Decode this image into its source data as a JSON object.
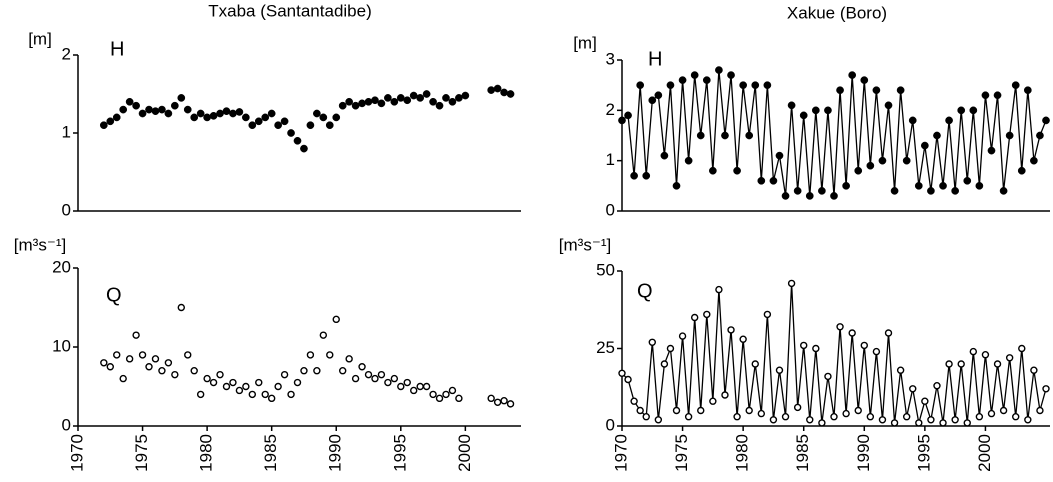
{
  "chart_data": [
    {
      "type": "scatter",
      "title": "Txaba (Santantadibe)",
      "y_unit": "[m]",
      "panel_label": "H",
      "marker": "filled",
      "x": [
        1972,
        1972.5,
        1973,
        1973.5,
        1974,
        1974.5,
        1975,
        1975.5,
        1976,
        1976.5,
        1977,
        1977.5,
        1978,
        1978.5,
        1979,
        1979.5,
        1980,
        1980.5,
        1981,
        1981.5,
        1982,
        1982.5,
        1983,
        1983.5,
        1984,
        1984.5,
        1985,
        1985.5,
        1986,
        1986.5,
        1987,
        1987.5,
        1988,
        1988.5,
        1989,
        1989.5,
        1990,
        1990.5,
        1991,
        1991.5,
        1992,
        1992.5,
        1993,
        1993.5,
        1994,
        1994.5,
        1995,
        1995.5,
        1996,
        1996.5,
        1997,
        1997.5,
        1998,
        1998.5,
        1999,
        1999.5,
        2000,
        2002,
        2002.5,
        2003,
        2003.5
      ],
      "values": [
        1.1,
        1.15,
        1.2,
        1.3,
        1.4,
        1.35,
        1.25,
        1.3,
        1.28,
        1.3,
        1.25,
        1.35,
        1.45,
        1.3,
        1.2,
        1.25,
        1.2,
        1.22,
        1.25,
        1.28,
        1.25,
        1.27,
        1.2,
        1.1,
        1.15,
        1.2,
        1.25,
        1.1,
        1.15,
        1.0,
        0.9,
        0.8,
        1.1,
        1.25,
        1.2,
        1.1,
        1.2,
        1.35,
        1.4,
        1.35,
        1.38,
        1.4,
        1.42,
        1.38,
        1.45,
        1.4,
        1.45,
        1.42,
        1.48,
        1.45,
        1.5,
        1.4,
        1.35,
        1.45,
        1.4,
        1.45,
        1.48,
        1.55,
        1.57,
        1.52,
        1.5
      ],
      "xlim": [
        1970,
        2004
      ],
      "ylim": [
        0,
        2
      ],
      "yticks": [
        0,
        1,
        2
      ]
    },
    {
      "type": "scatter",
      "y_unit": "[m³s⁻¹]",
      "panel_label": "Q",
      "marker": "open",
      "x": [
        1972,
        1972.5,
        1973,
        1973.5,
        1974,
        1974.5,
        1975,
        1975.5,
        1976,
        1976.5,
        1977,
        1977.5,
        1978,
        1978.5,
        1979,
        1979.5,
        1980,
        1980.5,
        1981,
        1981.5,
        1982,
        1982.5,
        1983,
        1983.5,
        1984,
        1984.5,
        1985,
        1985.5,
        1986,
        1986.5,
        1987,
        1987.5,
        1988,
        1988.5,
        1989,
        1989.5,
        1990,
        1990.5,
        1991,
        1991.5,
        1992,
        1992.5,
        1993,
        1993.5,
        1994,
        1994.5,
        1995,
        1995.5,
        1996,
        1996.5,
        1997,
        1997.5,
        1998,
        1998.5,
        1999,
        1999.5,
        2002,
        2002.5,
        2003,
        2003.5
      ],
      "values": [
        8,
        7.5,
        9,
        6,
        8.5,
        11.5,
        9,
        7.5,
        8.5,
        7,
        8,
        6.5,
        15,
        9,
        7,
        4,
        6,
        5.5,
        6.5,
        5,
        5.5,
        4.5,
        5,
        4,
        5.5,
        4,
        3.5,
        5,
        6.5,
        4,
        5.5,
        7,
        9,
        7,
        11.5,
        9,
        13.5,
        7,
        8.5,
        6,
        7.5,
        6.5,
        6,
        6.5,
        5.5,
        6,
        5,
        5.5,
        4.5,
        5,
        5,
        4,
        3.5,
        4,
        4.5,
        3.5,
        3.5,
        3,
        3.2,
        2.8
      ],
      "xlim": [
        1970,
        2004
      ],
      "ylim": [
        0,
        20
      ],
      "yticks": [
        0,
        10,
        20
      ],
      "xticks": [
        1970,
        1975,
        1980,
        1985,
        1990,
        1995,
        2000
      ]
    },
    {
      "type": "line",
      "title": "Xakue (Boro)",
      "y_unit": "[m]",
      "panel_label": "H",
      "marker": "filled",
      "x": [
        1970,
        1970.5,
        1971,
        1971.5,
        1972,
        1972.5,
        1973,
        1973.5,
        1974,
        1974.5,
        1975,
        1975.5,
        1976,
        1976.5,
        1977,
        1977.5,
        1978,
        1978.5,
        1979,
        1979.5,
        1980,
        1980.5,
        1981,
        1981.5,
        1982,
        1982.5,
        1983,
        1983.5,
        1984,
        1984.5,
        1985,
        1985.5,
        1986,
        1986.5,
        1987,
        1987.5,
        1988,
        1988.5,
        1989,
        1989.5,
        1990,
        1990.5,
        1991,
        1991.5,
        1992,
        1992.5,
        1993,
        1993.5,
        1994,
        1994.5,
        1995,
        1995.5,
        1996,
        1996.5,
        1997,
        1997.5,
        1998,
        1998.5,
        1999,
        1999.5,
        2000,
        2000.5,
        2001,
        2001.5,
        2002,
        2002.5,
        2003,
        2003.5,
        2004,
        2004.5,
        2005
      ],
      "values": [
        1.8,
        1.9,
        0.7,
        2.5,
        0.7,
        2.2,
        2.3,
        1.1,
        2.5,
        0.5,
        2.6,
        1.0,
        2.7,
        1.5,
        2.6,
        0.8,
        2.8,
        1.5,
        2.7,
        0.8,
        2.5,
        1.5,
        2.5,
        0.6,
        2.5,
        0.6,
        1.1,
        0.3,
        2.1,
        0.4,
        1.9,
        0.3,
        2.0,
        0.4,
        2.0,
        0.3,
        2.4,
        0.5,
        2.7,
        0.8,
        2.6,
        0.9,
        2.4,
        1.0,
        2.1,
        0.4,
        2.4,
        1.0,
        1.8,
        0.5,
        1.3,
        0.4,
        1.5,
        0.5,
        1.8,
        0.4,
        2.0,
        0.6,
        2.0,
        0.5,
        2.3,
        1.2,
        2.3,
        0.4,
        1.5,
        2.5,
        0.8,
        2.4,
        1.0,
        1.5,
        1.8
      ],
      "xlim": [
        1970,
        2005
      ],
      "ylim": [
        0,
        3
      ],
      "yticks": [
        0,
        1,
        2,
        3
      ]
    },
    {
      "type": "line",
      "y_unit": "[m³s⁻¹]",
      "panel_label": "Q",
      "marker": "open",
      "x": [
        1970,
        1970.5,
        1971,
        1971.5,
        1972,
        1972.5,
        1973,
        1973.5,
        1974,
        1974.5,
        1975,
        1975.5,
        1976,
        1976.5,
        1977,
        1977.5,
        1978,
        1978.5,
        1979,
        1979.5,
        1980,
        1980.5,
        1981,
        1981.5,
        1982,
        1982.5,
        1983,
        1983.5,
        1984,
        1984.5,
        1985,
        1985.5,
        1986,
        1986.5,
        1987,
        1987.5,
        1988,
        1988.5,
        1989,
        1989.5,
        1990,
        1990.5,
        1991,
        1991.5,
        1992,
        1992.5,
        1993,
        1993.5,
        1994,
        1994.5,
        1995,
        1995.5,
        1996,
        1996.5,
        1997,
        1997.5,
        1998,
        1998.5,
        1999,
        1999.5,
        2000,
        2000.5,
        2001,
        2001.5,
        2002,
        2002.5,
        2003,
        2003.5,
        2004,
        2004.5,
        2005
      ],
      "values": [
        17,
        15,
        8,
        5,
        3,
        27,
        2,
        20,
        25,
        5,
        29,
        3,
        35,
        5,
        36,
        8,
        44,
        10,
        31,
        3,
        28,
        5,
        20,
        4,
        36,
        2,
        18,
        3,
        46,
        6,
        26,
        2,
        25,
        1,
        16,
        3,
        32,
        4,
        30,
        5,
        26,
        3,
        24,
        2,
        30,
        1,
        18,
        3,
        12,
        1,
        8,
        2,
        13,
        1,
        20,
        2,
        20,
        1,
        24,
        3,
        23,
        4,
        20,
        5,
        22,
        3,
        25,
        2,
        18,
        5,
        12
      ],
      "xlim": [
        1970,
        2005
      ],
      "ylim": [
        0,
        50
      ],
      "yticks": [
        0,
        25,
        50
      ],
      "xticks": [
        1970,
        1975,
        1980,
        1985,
        1990,
        1995,
        2000
      ]
    }
  ]
}
